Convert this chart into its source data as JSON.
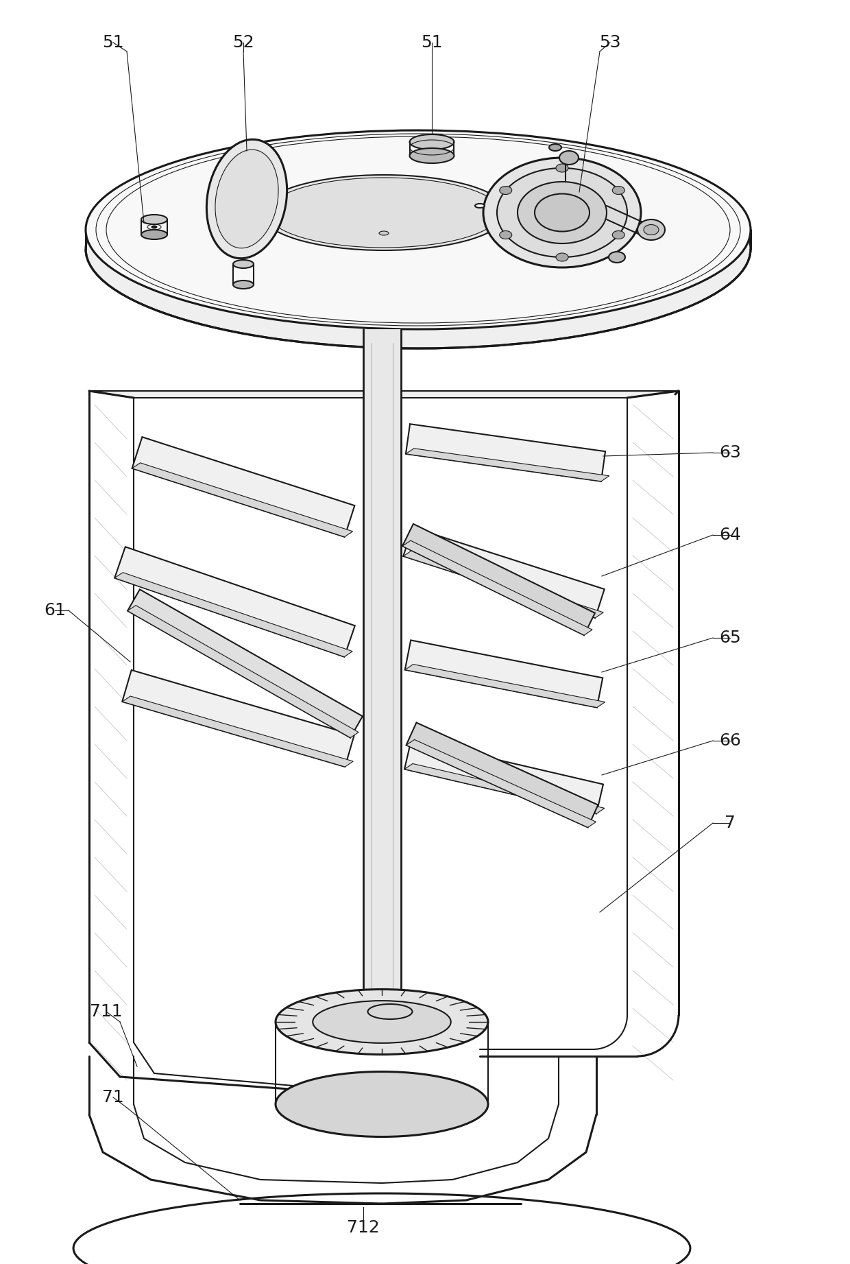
{
  "bg_color": "#ffffff",
  "line_color": "#1a1a1a",
  "lw_thin": 0.8,
  "lw_med": 1.5,
  "lw_thick": 2.2,
  "figsize": [
    12.4,
    18.43
  ],
  "dpi": 100,
  "label_fontsize": 18
}
